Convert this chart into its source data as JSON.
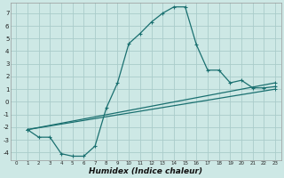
{
  "xlabel": "Humidex (Indice chaleur)",
  "background_color": "#cde8e5",
  "grid_color": "#aaccca",
  "line_color": "#1a7070",
  "xlim": [
    -0.5,
    23.5
  ],
  "ylim": [
    -4.6,
    7.8
  ],
  "yticks": [
    -4,
    -3,
    -2,
    -1,
    0,
    1,
    2,
    3,
    4,
    5,
    6,
    7
  ],
  "xticks": [
    0,
    1,
    2,
    3,
    4,
    5,
    6,
    7,
    8,
    9,
    10,
    11,
    12,
    13,
    14,
    15,
    16,
    17,
    18,
    19,
    20,
    21,
    22,
    23
  ],
  "curve_x": [
    1,
    2,
    3,
    4,
    5,
    6,
    7,
    8,
    9,
    10,
    11,
    12,
    13,
    14,
    15,
    16,
    17,
    18,
    19,
    20,
    21,
    22,
    23
  ],
  "curve_y": [
    -2.2,
    -2.8,
    -2.8,
    -4.1,
    -4.3,
    -4.3,
    -3.5,
    -0.5,
    1.5,
    4.6,
    5.4,
    6.3,
    7.0,
    7.5,
    7.5,
    4.5,
    2.5,
    2.5,
    1.5,
    1.7,
    1.1,
    1.1,
    1.2
  ],
  "line2_x": [
    1,
    23
  ],
  "line2_y": [
    -2.2,
    1.5
  ],
  "line3_x": [
    1,
    23
  ],
  "line3_y": [
    -2.2,
    1.0
  ]
}
